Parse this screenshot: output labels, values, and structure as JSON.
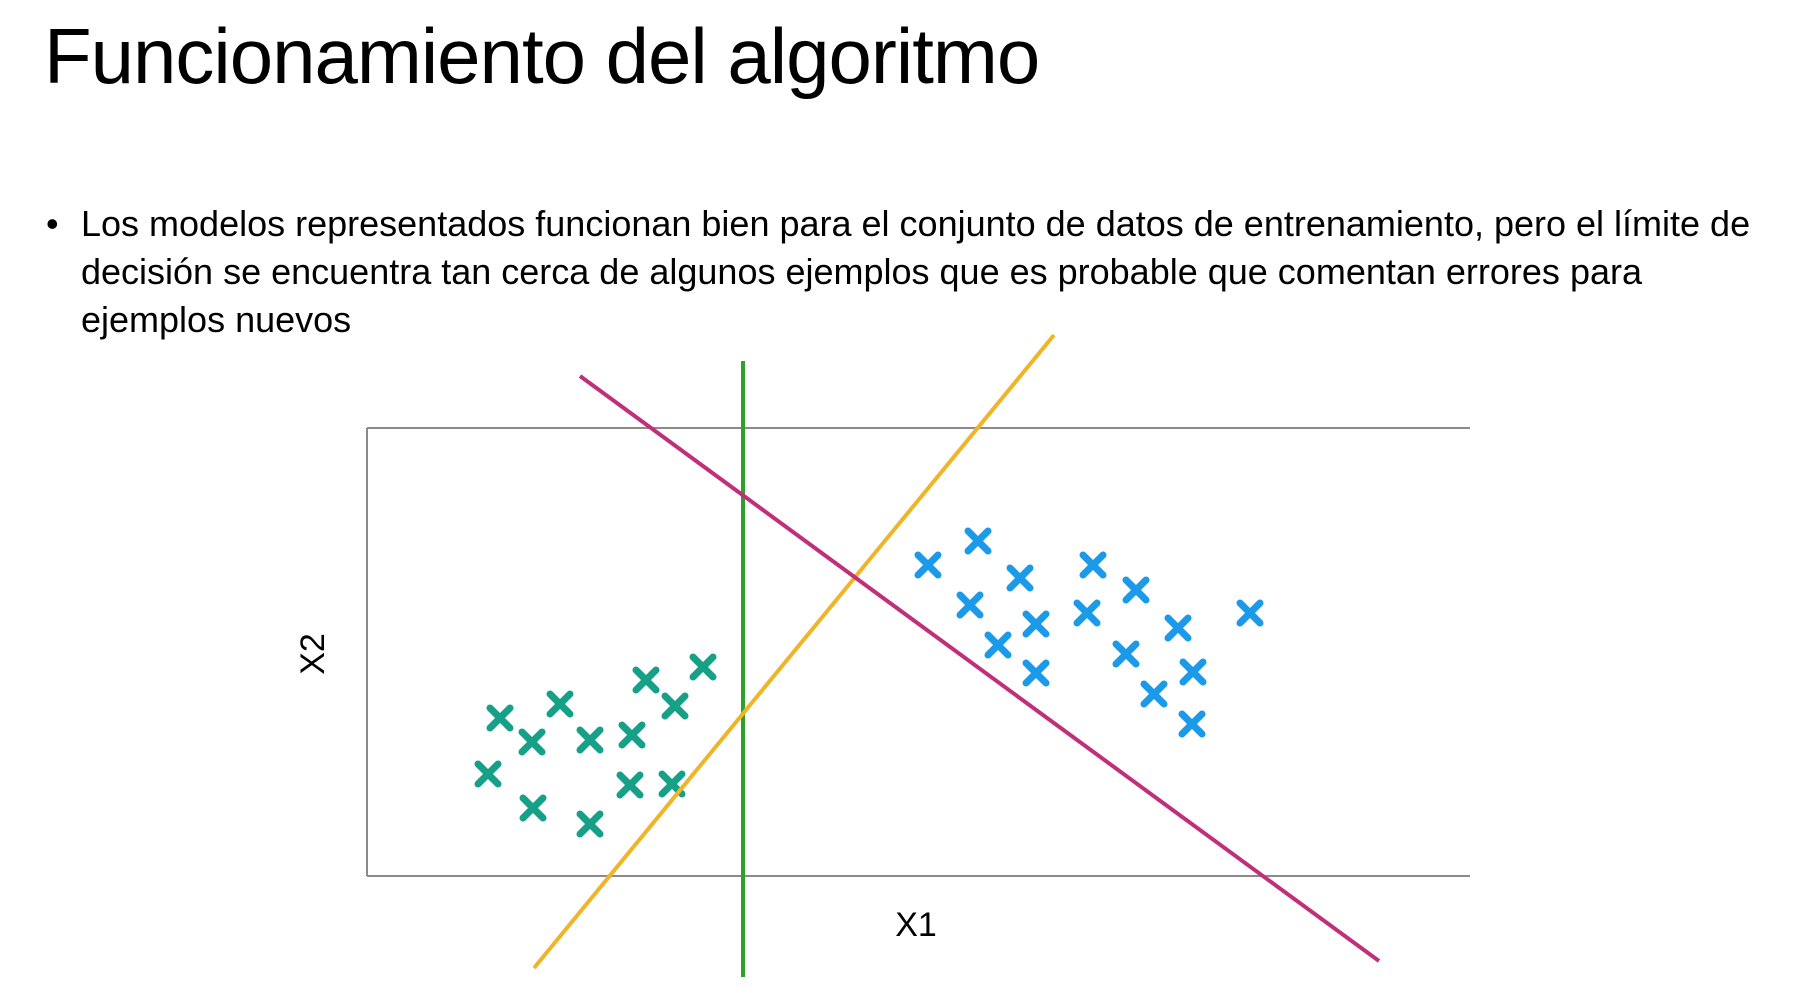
{
  "slide": {
    "title": "Funcionamiento del algoritmo",
    "bullets": [
      "Los modelos representados funcionan bien para el conjunto de datos de entrenamiento, pero el límite de decisión se encuentra tan cerca de algunos ejemplos que es probable que comentan errores para ejemplos nuevos"
    ]
  },
  "diagram": {
    "x_axis_label": "X1",
    "y_axis_label": "X2",
    "colors": {
      "class_a": "#16a088",
      "class_b": "#1a9ae8",
      "line_green": "#2ea12a",
      "line_orange": "#f0b428",
      "line_magenta": "#c0307a",
      "axis": "#8a8a8a"
    }
  }
}
